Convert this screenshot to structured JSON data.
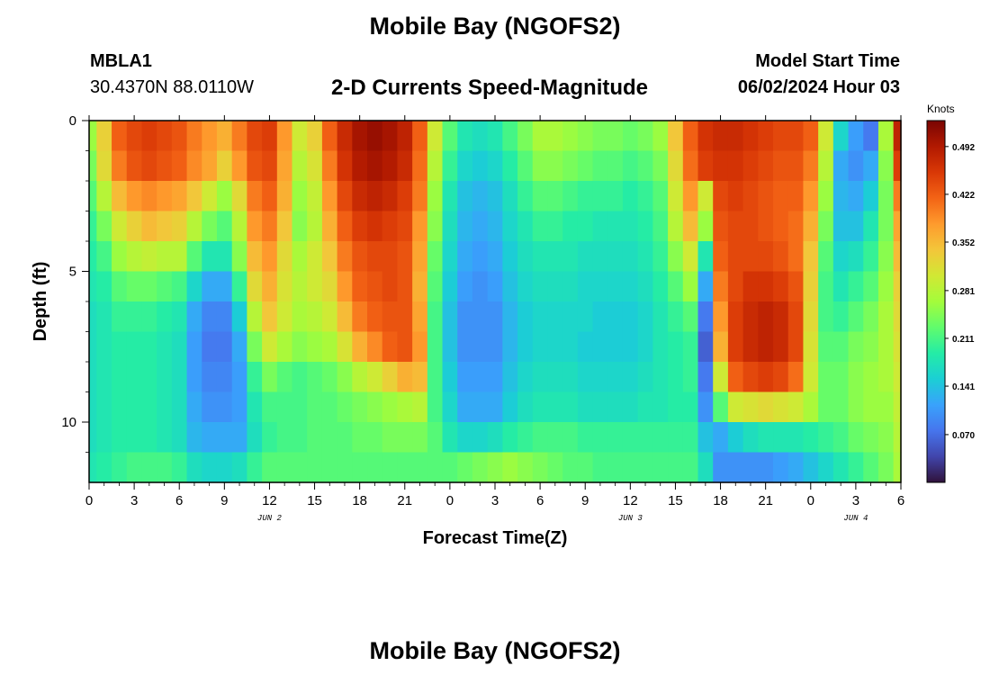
{
  "header": {
    "title": "Mobile Bay (NGOFS2)",
    "station_id": "MBLA1",
    "station_coords": "30.4370N  88.0110W",
    "subtitle": "2-D Currents Speed-Magnitude",
    "model_label": "Model Start Time",
    "model_time": "06/02/2024 Hour 03"
  },
  "footer": {
    "title": "Mobile Bay (NGOFS2)"
  },
  "chart_data": {
    "type": "heatmap",
    "title": "2-D Currents Speed-Magnitude",
    "xlabel": "Forecast Time(Z)",
    "ylabel": "Depth (ft)",
    "x_ticks": [
      "0",
      "3",
      "6",
      "9",
      "12",
      "15",
      "18",
      "21",
      "0",
      "3",
      "6",
      "9",
      "12",
      "15",
      "18",
      "21",
      "0",
      "3",
      "6"
    ],
    "x_range_hours": [
      0,
      54
    ],
    "y_ticks": [
      "0",
      "5",
      "10"
    ],
    "y_range_ft": [
      0,
      12
    ],
    "y_inverted": true,
    "date_labels": [
      {
        "label": "JUN 2",
        "hour": 12
      },
      {
        "label": "JUN 3",
        "hour": 36
      },
      {
        "label": "JUN 4",
        "hour": 51
      }
    ],
    "colorbar": {
      "unit": "Knots",
      "range": [
        0.0,
        0.53
      ],
      "tick_labels": [
        "0.492",
        "0.422",
        "0.352",
        "0.281",
        "0.211",
        "0.141",
        "0.070"
      ],
      "tick_values": [
        0.492,
        0.422,
        0.352,
        0.281,
        0.211,
        0.141,
        0.07
      ],
      "colormap": [
        "#30123b",
        "#4145ab",
        "#4675ed",
        "#39a2fc",
        "#1bcfd4",
        "#24eca6",
        "#61fc6c",
        "#a4fc3b",
        "#d1e834",
        "#f3c63a",
        "#fe9b2d",
        "#f36315",
        "#d93806",
        "#b11901",
        "#7a0402"
      ]
    },
    "depth_levels_ft": [
      0.5,
      1.5,
      2.5,
      3.5,
      4.5,
      5.5,
      6.5,
      7.5,
      8.5,
      9.5,
      10.5,
      11.5
    ],
    "speed_profile_hours": [
      0,
      1,
      2,
      3,
      4,
      5,
      6,
      7,
      8,
      9,
      10,
      11,
      12,
      13,
      14,
      15,
      16,
      17,
      18,
      19,
      20,
      21,
      22,
      23,
      24,
      25,
      26,
      27,
      28,
      29,
      30,
      31,
      32,
      33,
      34,
      35,
      36,
      37,
      38,
      39,
      40,
      41,
      42,
      43,
      44,
      45,
      46,
      47,
      48,
      49,
      50,
      51,
      52,
      53,
      54
    ],
    "speed_knots_by_depth": [
      [
        0.26,
        0.33,
        0.42,
        0.44,
        0.45,
        0.44,
        0.43,
        0.4,
        0.38,
        0.36,
        0.4,
        0.44,
        0.45,
        0.38,
        0.3,
        0.33,
        0.42,
        0.47,
        0.5,
        0.51,
        0.5,
        0.48,
        0.42,
        0.3,
        0.22,
        0.18,
        0.17,
        0.18,
        0.21,
        0.24,
        0.27,
        0.27,
        0.26,
        0.25,
        0.24,
        0.24,
        0.23,
        0.24,
        0.26,
        0.34,
        0.42,
        0.46,
        0.47,
        0.47,
        0.46,
        0.45,
        0.44,
        0.44,
        0.42,
        0.3,
        0.16,
        0.11,
        0.08,
        0.27,
        0.48
      ],
      [
        0.24,
        0.32,
        0.4,
        0.43,
        0.44,
        0.43,
        0.42,
        0.39,
        0.37,
        0.33,
        0.38,
        0.43,
        0.44,
        0.37,
        0.28,
        0.31,
        0.4,
        0.46,
        0.49,
        0.5,
        0.49,
        0.47,
        0.41,
        0.28,
        0.2,
        0.16,
        0.15,
        0.16,
        0.19,
        0.22,
        0.25,
        0.25,
        0.24,
        0.23,
        0.22,
        0.22,
        0.21,
        0.22,
        0.24,
        0.32,
        0.41,
        0.45,
        0.46,
        0.46,
        0.45,
        0.44,
        0.43,
        0.43,
        0.4,
        0.28,
        0.12,
        0.1,
        0.12,
        0.25,
        0.45
      ],
      [
        0.22,
        0.28,
        0.35,
        0.38,
        0.39,
        0.38,
        0.37,
        0.34,
        0.3,
        0.26,
        0.32,
        0.4,
        0.42,
        0.36,
        0.26,
        0.29,
        0.38,
        0.44,
        0.47,
        0.48,
        0.47,
        0.45,
        0.4,
        0.26,
        0.18,
        0.14,
        0.13,
        0.14,
        0.17,
        0.2,
        0.22,
        0.22,
        0.21,
        0.2,
        0.2,
        0.2,
        0.19,
        0.2,
        0.22,
        0.3,
        0.38,
        0.3,
        0.44,
        0.45,
        0.44,
        0.43,
        0.42,
        0.42,
        0.38,
        0.26,
        0.13,
        0.12,
        0.15,
        0.24,
        0.4
      ],
      [
        0.2,
        0.24,
        0.3,
        0.33,
        0.35,
        0.34,
        0.33,
        0.28,
        0.24,
        0.22,
        0.28,
        0.38,
        0.4,
        0.34,
        0.25,
        0.28,
        0.36,
        0.42,
        0.45,
        0.46,
        0.45,
        0.44,
        0.38,
        0.25,
        0.17,
        0.13,
        0.12,
        0.13,
        0.16,
        0.18,
        0.2,
        0.2,
        0.19,
        0.19,
        0.18,
        0.18,
        0.18,
        0.19,
        0.21,
        0.28,
        0.35,
        0.26,
        0.43,
        0.44,
        0.44,
        0.43,
        0.42,
        0.41,
        0.36,
        0.24,
        0.14,
        0.14,
        0.18,
        0.24,
        0.37
      ],
      [
        0.19,
        0.21,
        0.26,
        0.28,
        0.29,
        0.28,
        0.28,
        0.22,
        0.18,
        0.18,
        0.25,
        0.35,
        0.38,
        0.32,
        0.27,
        0.3,
        0.34,
        0.4,
        0.43,
        0.44,
        0.44,
        0.43,
        0.37,
        0.23,
        0.16,
        0.12,
        0.11,
        0.12,
        0.15,
        0.17,
        0.18,
        0.18,
        0.18,
        0.17,
        0.17,
        0.17,
        0.17,
        0.18,
        0.2,
        0.25,
        0.3,
        0.18,
        0.42,
        0.44,
        0.44,
        0.44,
        0.43,
        0.41,
        0.34,
        0.22,
        0.16,
        0.17,
        0.2,
        0.25,
        0.35
      ],
      [
        0.18,
        0.19,
        0.22,
        0.23,
        0.23,
        0.22,
        0.21,
        0.16,
        0.12,
        0.12,
        0.2,
        0.32,
        0.36,
        0.31,
        0.28,
        0.3,
        0.32,
        0.38,
        0.42,
        0.43,
        0.44,
        0.43,
        0.36,
        0.22,
        0.15,
        0.11,
        0.1,
        0.11,
        0.14,
        0.16,
        0.17,
        0.17,
        0.17,
        0.16,
        0.16,
        0.16,
        0.16,
        0.17,
        0.19,
        0.22,
        0.26,
        0.12,
        0.4,
        0.44,
        0.46,
        0.46,
        0.45,
        0.43,
        0.33,
        0.21,
        0.18,
        0.2,
        0.22,
        0.26,
        0.33
      ],
      [
        0.17,
        0.18,
        0.2,
        0.2,
        0.2,
        0.19,
        0.18,
        0.12,
        0.09,
        0.09,
        0.15,
        0.28,
        0.34,
        0.3,
        0.27,
        0.28,
        0.3,
        0.35,
        0.4,
        0.42,
        0.43,
        0.43,
        0.37,
        0.21,
        0.14,
        0.1,
        0.1,
        0.1,
        0.13,
        0.15,
        0.16,
        0.16,
        0.16,
        0.16,
        0.15,
        0.15,
        0.15,
        0.16,
        0.18,
        0.2,
        0.22,
        0.08,
        0.38,
        0.45,
        0.47,
        0.48,
        0.47,
        0.44,
        0.32,
        0.21,
        0.2,
        0.22,
        0.24,
        0.27,
        0.32
      ],
      [
        0.17,
        0.18,
        0.19,
        0.19,
        0.19,
        0.18,
        0.17,
        0.11,
        0.08,
        0.08,
        0.12,
        0.24,
        0.3,
        0.27,
        0.25,
        0.26,
        0.27,
        0.31,
        0.36,
        0.39,
        0.42,
        0.43,
        0.38,
        0.21,
        0.14,
        0.1,
        0.1,
        0.1,
        0.13,
        0.15,
        0.16,
        0.16,
        0.16,
        0.15,
        0.15,
        0.15,
        0.15,
        0.16,
        0.18,
        0.19,
        0.2,
        0.06,
        0.36,
        0.45,
        0.47,
        0.48,
        0.47,
        0.44,
        0.31,
        0.22,
        0.22,
        0.24,
        0.25,
        0.27,
        0.31
      ],
      [
        0.17,
        0.18,
        0.19,
        0.19,
        0.19,
        0.18,
        0.17,
        0.11,
        0.09,
        0.09,
        0.11,
        0.2,
        0.24,
        0.22,
        0.21,
        0.22,
        0.23,
        0.25,
        0.28,
        0.3,
        0.33,
        0.36,
        0.35,
        0.21,
        0.15,
        0.11,
        0.11,
        0.11,
        0.14,
        0.16,
        0.17,
        0.17,
        0.17,
        0.16,
        0.16,
        0.16,
        0.16,
        0.17,
        0.18,
        0.19,
        0.2,
        0.08,
        0.3,
        0.42,
        0.44,
        0.45,
        0.44,
        0.41,
        0.3,
        0.23,
        0.23,
        0.25,
        0.26,
        0.27,
        0.3
      ],
      [
        0.17,
        0.18,
        0.19,
        0.19,
        0.19,
        0.18,
        0.17,
        0.12,
        0.1,
        0.1,
        0.11,
        0.18,
        0.21,
        0.21,
        0.21,
        0.22,
        0.22,
        0.23,
        0.24,
        0.25,
        0.26,
        0.27,
        0.28,
        0.21,
        0.16,
        0.12,
        0.12,
        0.12,
        0.15,
        0.17,
        0.18,
        0.18,
        0.18,
        0.17,
        0.17,
        0.17,
        0.17,
        0.18,
        0.18,
        0.19,
        0.19,
        0.1,
        0.22,
        0.3,
        0.31,
        0.32,
        0.31,
        0.3,
        0.27,
        0.23,
        0.23,
        0.25,
        0.26,
        0.26,
        0.29
      ],
      [
        0.17,
        0.18,
        0.19,
        0.19,
        0.19,
        0.18,
        0.17,
        0.13,
        0.12,
        0.12,
        0.12,
        0.17,
        0.2,
        0.21,
        0.21,
        0.22,
        0.22,
        0.22,
        0.23,
        0.23,
        0.24,
        0.24,
        0.24,
        0.22,
        0.18,
        0.16,
        0.16,
        0.17,
        0.19,
        0.2,
        0.21,
        0.21,
        0.21,
        0.2,
        0.2,
        0.2,
        0.2,
        0.2,
        0.2,
        0.2,
        0.2,
        0.14,
        0.12,
        0.15,
        0.17,
        0.18,
        0.18,
        0.18,
        0.19,
        0.2,
        0.21,
        0.23,
        0.24,
        0.25,
        0.28
      ],
      [
        0.18,
        0.19,
        0.2,
        0.21,
        0.21,
        0.21,
        0.2,
        0.17,
        0.16,
        0.16,
        0.17,
        0.2,
        0.22,
        0.22,
        0.22,
        0.22,
        0.22,
        0.22,
        0.22,
        0.22,
        0.22,
        0.22,
        0.22,
        0.22,
        0.22,
        0.23,
        0.24,
        0.25,
        0.26,
        0.25,
        0.24,
        0.23,
        0.22,
        0.22,
        0.21,
        0.21,
        0.21,
        0.21,
        0.21,
        0.21,
        0.21,
        0.17,
        0.1,
        0.1,
        0.1,
        0.1,
        0.11,
        0.12,
        0.14,
        0.16,
        0.18,
        0.2,
        0.22,
        0.24,
        0.27
      ]
    ]
  }
}
